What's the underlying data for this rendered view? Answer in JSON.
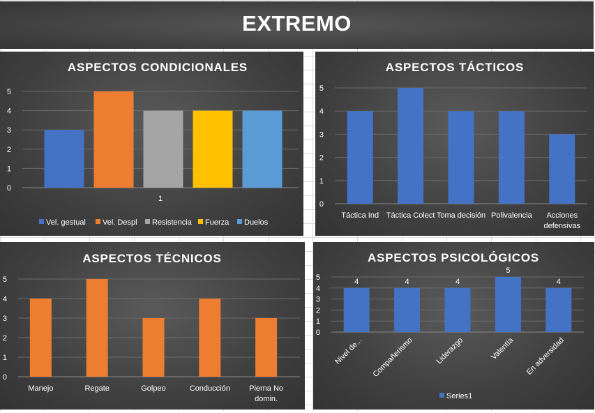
{
  "page": {
    "title": "EXTREMO"
  },
  "colors": {
    "background_panel": "#404040",
    "grid": "#6a6a6a",
    "axis_text": "#ffffff",
    "blue": "#4472c4",
    "orange": "#ed7d31",
    "gray": "#a5a5a5",
    "gold": "#ffc000",
    "lightblue": "#5b9bd5"
  },
  "chart_data": [
    {
      "id": "condicionales",
      "type": "bar",
      "title": "ASPECTOS CONDICIONALES",
      "categories": [
        "1"
      ],
      "series": [
        {
          "name": "Vel. gestual",
          "values": [
            3
          ],
          "color": "#4472c4"
        },
        {
          "name": "Vel. Despl",
          "values": [
            5
          ],
          "color": "#ed7d31"
        },
        {
          "name": "Resistencia",
          "values": [
            4
          ],
          "color": "#a5a5a5"
        },
        {
          "name": "Fuerza",
          "values": [
            4
          ],
          "color": "#ffc000"
        },
        {
          "name": "Duelos",
          "values": [
            4
          ],
          "color": "#5b9bd5"
        }
      ],
      "ylim": [
        0,
        5
      ],
      "yticks": [
        "0",
        "1",
        "2",
        "3",
        "4",
        "5"
      ],
      "grid": true,
      "legend": "bottom"
    },
    {
      "id": "tacticos",
      "type": "bar",
      "title": "ASPECTOS TÁCTICOS",
      "categories": [
        "Táctica Ind",
        "Táctica Colect",
        "Toma decisión",
        "Polivalencia",
        "Acciones defensivas"
      ],
      "values": [
        4,
        5,
        4,
        4,
        3
      ],
      "color": "#4472c4",
      "ylim": [
        0,
        5
      ],
      "yticks": [
        "0",
        "1",
        "2",
        "3",
        "4",
        "5"
      ],
      "grid": true
    },
    {
      "id": "tecnicos",
      "type": "bar",
      "title": "ASPECTOS TÉCNICOS",
      "categories": [
        "Manejo",
        "Regate",
        "Golpeo",
        "Conducción",
        "Pierna No domin."
      ],
      "values": [
        4,
        5,
        3,
        4,
        3
      ],
      "color": "#ed7d31",
      "ylim": [
        0,
        5
      ],
      "yticks": [
        "0",
        "1",
        "2",
        "3",
        "4",
        "5"
      ],
      "grid": true
    },
    {
      "id": "psicologicos",
      "type": "bar",
      "title": "ASPECTOS PSICOLÓGICOS",
      "categories": [
        "Nivel de...",
        "Compañerismo",
        "Liderazgo",
        "Valentía",
        "En adversidad"
      ],
      "series": [
        {
          "name": "Series1",
          "values": [
            4,
            4,
            4,
            5,
            4
          ],
          "color": "#4472c4"
        }
      ],
      "data_labels": [
        "4",
        "4",
        "4",
        "5",
        "4"
      ],
      "ylim": [
        0,
        5
      ],
      "yticks": [
        "0",
        "1",
        "2",
        "3",
        "4",
        "5"
      ],
      "grid": true,
      "legend": "bottom"
    }
  ]
}
